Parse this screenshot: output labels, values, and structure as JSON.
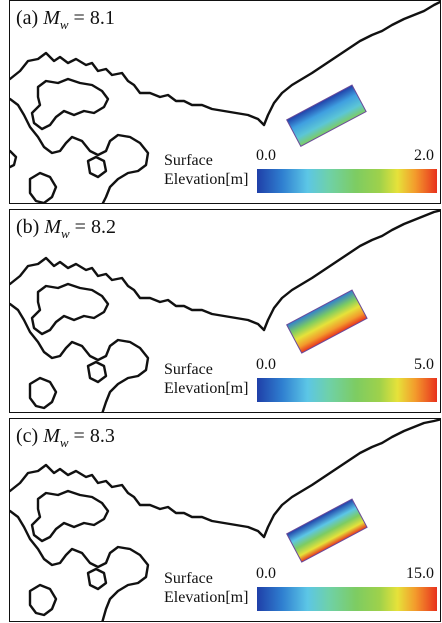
{
  "legend": {
    "title_line1": "Surface",
    "title_line2": "Elevation[m]",
    "colors": [
      "#1f3fa8",
      "#5cc6e6",
      "#7dcc62",
      "#e6e23a",
      "#e8321e"
    ]
  },
  "panels": [
    {
      "prefix": "(a) ",
      "mw_letter": "M",
      "mw_sub": "w",
      "value_text": " = 8.1",
      "legend_min": "0.0",
      "legend_max": "2.0"
    },
    {
      "prefix": "(b) ",
      "mw_letter": "M",
      "mw_sub": "w",
      "value_text": " = 8.2",
      "legend_min": "0.0",
      "legend_max": "5.0"
    },
    {
      "prefix": "(c) ",
      "mw_letter": "M",
      "mw_sub": "w",
      "value_text": " = 8.3",
      "legend_min": "0.0",
      "legend_max": "15.0"
    }
  ]
}
